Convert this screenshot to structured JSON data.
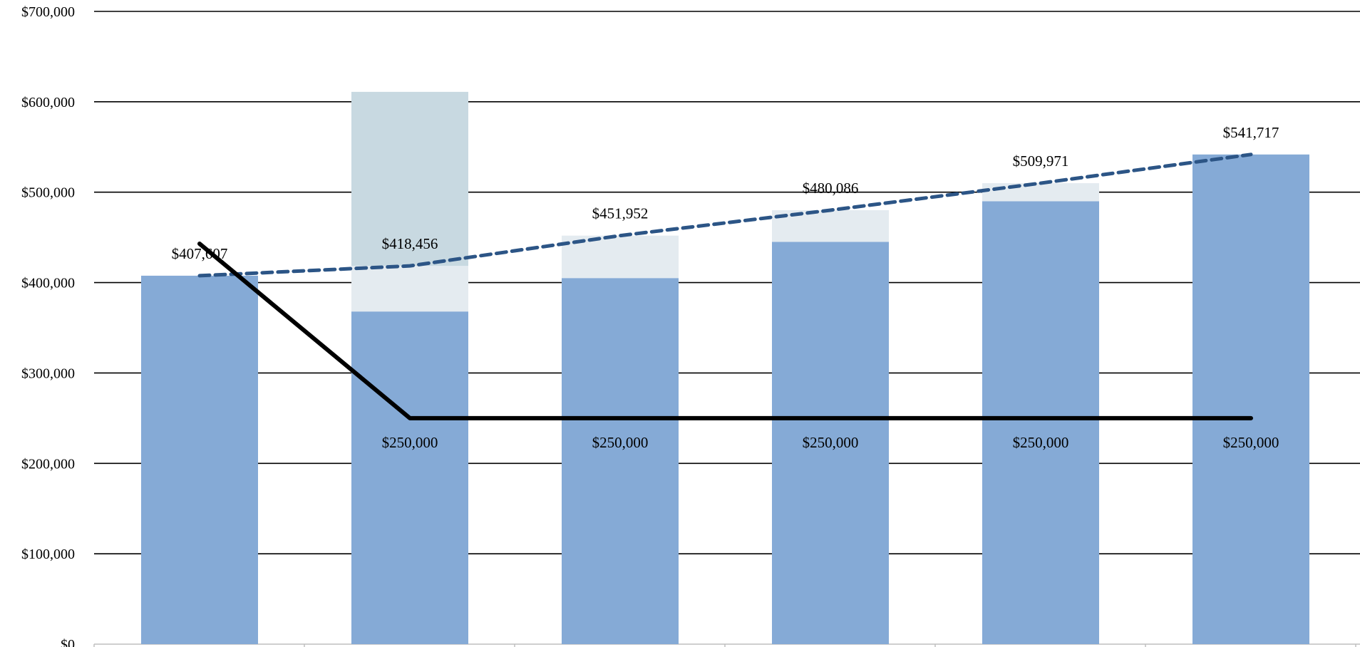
{
  "chart_data": {
    "type": "bar",
    "title": "",
    "xlabel": "",
    "ylabel": "",
    "ylim": [
      0,
      700000
    ],
    "y_ticks": [
      0,
      100000,
      200000,
      300000,
      400000,
      500000,
      600000,
      700000
    ],
    "y_tick_labels": [
      "$0",
      "$100,000",
      "$200,000",
      "$300,000",
      "$400,000",
      "$500,000",
      "$600,000",
      "$700,000"
    ],
    "grid": true,
    "categories": [
      "",
      "",
      "",
      "",
      "",
      ""
    ],
    "stacked_bars": {
      "base": [
        407607,
        368000,
        405000,
        445000,
        490000,
        541717
      ],
      "middle": [
        0,
        50456,
        46952,
        35086,
        19971,
        0
      ],
      "top": [
        0,
        192544,
        0,
        0,
        0,
        0
      ]
    },
    "bar_colors": {
      "base": "#85AAD6",
      "middle": "#E4EBF0",
      "top": "#C8D9E1"
    },
    "series": [
      {
        "type": "line",
        "style": "dashed",
        "color": "#2C5586",
        "values": [
          407607,
          418456,
          451952,
          480086,
          509971,
          541717
        ],
        "labels": [
          "$407,607",
          "$418,456",
          "$451,952",
          "$480,086",
          "$509,971",
          "$541,717"
        ]
      },
      {
        "type": "line",
        "style": "solid",
        "color": "#000000",
        "values": [
          443000,
          250000,
          250000,
          250000,
          250000,
          250000
        ],
        "labels": [
          "",
          "$250,000",
          "$250,000",
          "$250,000",
          "$250,000",
          "$250,000"
        ]
      }
    ],
    "legend": "none"
  }
}
